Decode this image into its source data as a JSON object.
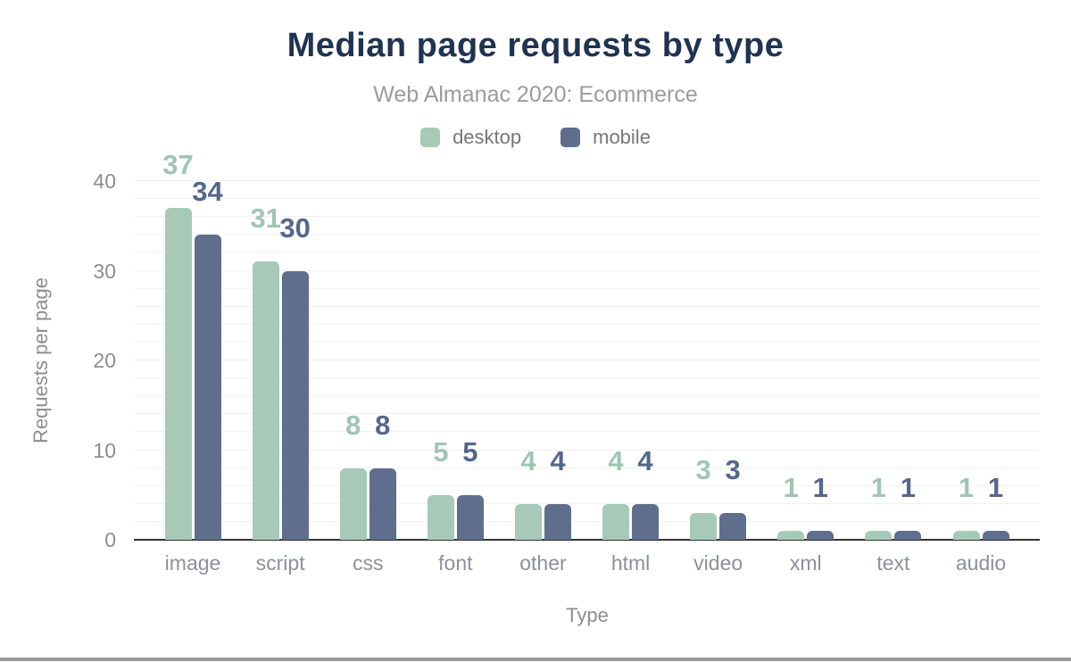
{
  "chart": {
    "title": "Median page requests by type",
    "subtitle": "Web Almanac 2020: Ecommerce",
    "title_color": "#1f3352"
  },
  "chart_data": {
    "type": "bar",
    "title": "Median page requests by type",
    "subtitle": "Web Almanac 2020: Ecommerce",
    "categories": [
      "image",
      "script",
      "css",
      "font",
      "other",
      "html",
      "video",
      "xml",
      "text",
      "audio"
    ],
    "series": [
      {
        "name": "desktop",
        "color": "#a6c9b8",
        "label_color": "#9fc6b2",
        "values": [
          37,
          31,
          8,
          5,
          4,
          4,
          3,
          1,
          1,
          1
        ]
      },
      {
        "name": "mobile",
        "color": "#5e6e8c",
        "label_color": "#54678c",
        "values": [
          34,
          30,
          8,
          5,
          4,
          4,
          3,
          1,
          1,
          1
        ]
      }
    ],
    "xlabel": "Type",
    "ylabel": "Requests per page",
    "ylim": [
      0,
      40
    ],
    "yticks": [
      0,
      10,
      20,
      30,
      40
    ],
    "grid_step": 2,
    "grid": "on",
    "legend_position": "top",
    "colors": {
      "axis_line": "#333333",
      "grid": "#f1f1f1",
      "tick_text": "#8d8d8d",
      "category_text": "#8b919c",
      "axis_title_text": "#8d8d8d",
      "legend_text": "#777777",
      "subtitle_text": "#9b9b9b",
      "footer_bar": "#97999c"
    }
  }
}
